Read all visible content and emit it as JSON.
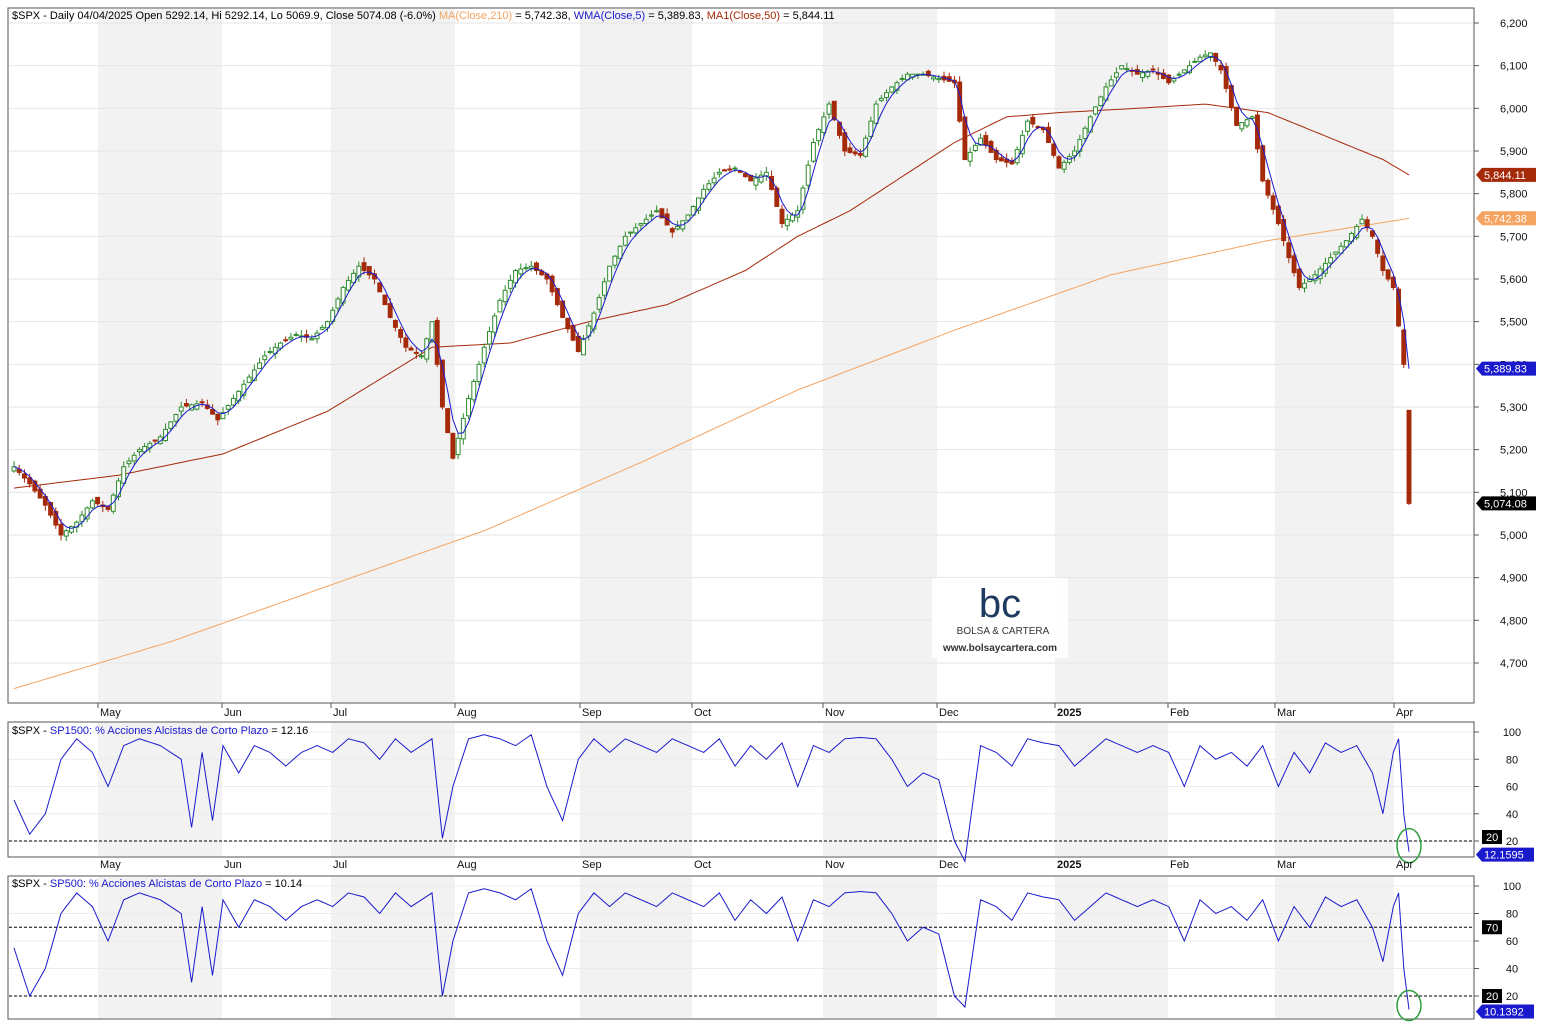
{
  "header": {
    "main_prefix": "$SPX - Daily 04/04/2025 Open 5292.14, Hi 5292.14, Lo 5069.9, Close 5074.08 (-6.0%)",
    "ma210_text": "MA(Close,210)",
    "ma210_value_text": "= 5,742.38,",
    "wma5_text": "WMA(Close,5)",
    "wma5_value_text": "= 5,389.83,",
    "ma50_text": "MA1(Close,50)",
    "ma50_value_text": "= 5,844.11",
    "sp1500_prefix": "$SPX - ",
    "sp1500_text": "SP1500: % Acciones Alcistas de Corto Plazo",
    "sp1500_value_text": "= 12.16",
    "sp500_prefix": "$SPX - ",
    "sp500_text": "SP500: % Acciones Alcistas de Corto Plazo",
    "sp500_value_text": "= 10.14"
  },
  "colors": {
    "up": "#2e8b2e",
    "down": "#a52a0a",
    "ma210": "#f4a460",
    "wma5": "#1a1acd",
    "ma50": "#a52a0a",
    "indicator": "#1a1acd",
    "circle": "#2e9e3e",
    "band": "#f2f2f2"
  },
  "logo": {
    "mark": "bc",
    "name": "BOLSA & CARTERA",
    "url": "www.bolsaycartera.com"
  },
  "x_axis": {
    "month_labels": [
      "May",
      "Jun",
      "Jul",
      "Aug",
      "Sep",
      "Oct",
      "Nov",
      "Dec",
      "2025",
      "Feb",
      "Mar",
      "Apr"
    ]
  },
  "price_axis": {
    "ticks": [
      "6,200",
      "6,100",
      "6,000",
      "5,900",
      "5,800",
      "5,700",
      "5,600",
      "5,500",
      "5,400",
      "5,300",
      "5,200",
      "5,100",
      "5,000",
      "4,900",
      "4,800",
      "4,700"
    ]
  },
  "price_tags": {
    "ma50": "5,844.11",
    "ma210": "5,742.38",
    "wma5": "5,389.83",
    "close": "5,074.08"
  },
  "indicator_axis": {
    "ticks": [
      "100",
      "80",
      "60",
      "40",
      "20"
    ]
  },
  "panel2_tags": {
    "level": "20",
    "value": "12.1595"
  },
  "panel3_tags": {
    "upper": "70",
    "lower": "20",
    "value": "10.1392"
  },
  "chart_data": [
    {
      "type": "candlestick",
      "symbol": "$SPX",
      "period": "Daily",
      "last_bar": {
        "date": "04/04/2025",
        "open": 5292.14,
        "high": 5292.14,
        "low": 5069.9,
        "close": 5074.08,
        "change_pct": -6.0
      },
      "ylim": [
        4630,
        6220
      ],
      "anchors": [
        [
          0,
          5160
        ],
        [
          3,
          5120
        ],
        [
          6,
          5070
        ],
        [
          9,
          5000
        ],
        [
          12,
          5030
        ],
        [
          15,
          5080
        ],
        [
          18,
          5060
        ],
        [
          21,
          5160
        ],
        [
          24,
          5200
        ],
        [
          28,
          5230
        ],
        [
          32,
          5300
        ],
        [
          36,
          5310
        ],
        [
          39,
          5270
        ],
        [
          42,
          5320
        ],
        [
          45,
          5370
        ],
        [
          48,
          5420
        ],
        [
          51,
          5450
        ],
        [
          54,
          5470
        ],
        [
          57,
          5460
        ],
        [
          60,
          5500
        ],
        [
          63,
          5580
        ],
        [
          66,
          5630
        ],
        [
          69,
          5600
        ],
        [
          72,
          5510
        ],
        [
          75,
          5440
        ],
        [
          78,
          5420
        ],
        [
          80,
          5500
        ],
        [
          82,
          5300
        ],
        [
          84,
          5180
        ],
        [
          87,
          5320
        ],
        [
          90,
          5440
        ],
        [
          93,
          5550
        ],
        [
          96,
          5620
        ],
        [
          99,
          5630
        ],
        [
          102,
          5600
        ],
        [
          105,
          5510
        ],
        [
          108,
          5430
        ],
        [
          111,
          5520
        ],
        [
          114,
          5630
        ],
        [
          117,
          5700
        ],
        [
          120,
          5730
        ],
        [
          123,
          5760
        ],
        [
          126,
          5710
        ],
        [
          129,
          5750
        ],
        [
          132,
          5810
        ],
        [
          135,
          5850
        ],
        [
          138,
          5860
        ],
        [
          141,
          5830
        ],
        [
          144,
          5850
        ],
        [
          147,
          5730
        ],
        [
          150,
          5760
        ],
        [
          153,
          5920
        ],
        [
          156,
          6010
        ],
        [
          159,
          5900
        ],
        [
          162,
          5890
        ],
        [
          165,
          6010
        ],
        [
          168,
          6050
        ],
        [
          171,
          6080
        ],
        [
          174,
          6080
        ],
        [
          177,
          6070
        ],
        [
          180,
          6060
        ],
        [
          182,
          5880
        ],
        [
          185,
          5930
        ],
        [
          188,
          5880
        ],
        [
          191,
          5870
        ],
        [
          194,
          5970
        ],
        [
          197,
          5950
        ],
        [
          200,
          5860
        ],
        [
          203,
          5900
        ],
        [
          206,
          5980
        ],
        [
          209,
          6050
        ],
        [
          212,
          6100
        ],
        [
          215,
          6080
        ],
        [
          218,
          6090
        ],
        [
          221,
          6060
        ],
        [
          224,
          6090
        ],
        [
          227,
          6120
        ],
        [
          229,
          6130
        ],
        [
          231,
          6090
        ],
        [
          234,
          5960
        ],
        [
          237,
          5980
        ],
        [
          239,
          5830
        ],
        [
          242,
          5730
        ],
        [
          244,
          5650
        ],
        [
          246,
          5580
        ],
        [
          249,
          5610
        ],
        [
          252,
          5650
        ],
        [
          255,
          5690
        ],
        [
          258,
          5740
        ],
        [
          260,
          5700
        ],
        [
          262,
          5620
        ],
        [
          264,
          5580
        ],
        [
          266,
          5400
        ],
        [
          267,
          5074
        ]
      ],
      "ma210_points": [
        [
          0,
          4640
        ],
        [
          30,
          4750
        ],
        [
          60,
          4880
        ],
        [
          90,
          5010
        ],
        [
          120,
          5170
        ],
        [
          150,
          5340
        ],
        [
          180,
          5480
        ],
        [
          210,
          5610
        ],
        [
          240,
          5690
        ],
        [
          267,
          5742
        ]
      ],
      "ma50_points": [
        [
          0,
          5110
        ],
        [
          20,
          5140
        ],
        [
          40,
          5190
        ],
        [
          60,
          5290
        ],
        [
          80,
          5440
        ],
        [
          95,
          5450
        ],
        [
          110,
          5500
        ],
        [
          125,
          5540
        ],
        [
          140,
          5620
        ],
        [
          150,
          5700
        ],
        [
          160,
          5760
        ],
        [
          170,
          5840
        ],
        [
          180,
          5920
        ],
        [
          190,
          5980
        ],
        [
          200,
          5990
        ],
        [
          215,
          6000
        ],
        [
          228,
          6010
        ],
        [
          240,
          5990
        ],
        [
          252,
          5930
        ],
        [
          262,
          5880
        ],
        [
          267,
          5844
        ]
      ]
    },
    {
      "type": "line",
      "name": "SP1500: % Acciones Alcistas de Corto Plazo",
      "last_value": 12.16,
      "ylim": [
        0,
        105
      ],
      "reference_lines": [
        20
      ],
      "anchors": [
        [
          0,
          50
        ],
        [
          3,
          25
        ],
        [
          6,
          40
        ],
        [
          9,
          80
        ],
        [
          12,
          95
        ],
        [
          15,
          85
        ],
        [
          18,
          60
        ],
        [
          21,
          90
        ],
        [
          24,
          95
        ],
        [
          28,
          90
        ],
        [
          32,
          80
        ],
        [
          34,
          30
        ],
        [
          36,
          85
        ],
        [
          38,
          35
        ],
        [
          40,
          90
        ],
        [
          43,
          70
        ],
        [
          46,
          90
        ],
        [
          49,
          85
        ],
        [
          52,
          75
        ],
        [
          55,
          85
        ],
        [
          58,
          90
        ],
        [
          61,
          85
        ],
        [
          64,
          95
        ],
        [
          67,
          92
        ],
        [
          70,
          80
        ],
        [
          73,
          95
        ],
        [
          76,
          85
        ],
        [
          80,
          95
        ],
        [
          82,
          22
        ],
        [
          84,
          60
        ],
        [
          87,
          95
        ],
        [
          90,
          98
        ],
        [
          93,
          95
        ],
        [
          96,
          90
        ],
        [
          99,
          98
        ],
        [
          102,
          60
        ],
        [
          105,
          35
        ],
        [
          108,
          80
        ],
        [
          111,
          95
        ],
        [
          114,
          85
        ],
        [
          117,
          95
        ],
        [
          120,
          90
        ],
        [
          123,
          85
        ],
        [
          126,
          95
        ],
        [
          129,
          90
        ],
        [
          132,
          85
        ],
        [
          135,
          95
        ],
        [
          138,
          75
        ],
        [
          141,
          90
        ],
        [
          144,
          80
        ],
        [
          147,
          92
        ],
        [
          150,
          60
        ],
        [
          153,
          90
        ],
        [
          156,
          85
        ],
        [
          159,
          95
        ],
        [
          162,
          96
        ],
        [
          165,
          95
        ],
        [
          168,
          80
        ],
        [
          171,
          60
        ],
        [
          174,
          70
        ],
        [
          177,
          65
        ],
        [
          180,
          20
        ],
        [
          182,
          5
        ],
        [
          185,
          90
        ],
        [
          188,
          85
        ],
        [
          191,
          75
        ],
        [
          194,
          95
        ],
        [
          197,
          92
        ],
        [
          200,
          90
        ],
        [
          203,
          75
        ],
        [
          206,
          85
        ],
        [
          209,
          95
        ],
        [
          212,
          90
        ],
        [
          215,
          85
        ],
        [
          218,
          90
        ],
        [
          221,
          85
        ],
        [
          224,
          60
        ],
        [
          227,
          90
        ],
        [
          230,
          80
        ],
        [
          233,
          85
        ],
        [
          236,
          75
        ],
        [
          239,
          90
        ],
        [
          242,
          60
        ],
        [
          245,
          85
        ],
        [
          248,
          70
        ],
        [
          251,
          92
        ],
        [
          254,
          85
        ],
        [
          257,
          90
        ],
        [
          260,
          70
        ],
        [
          262,
          40
        ],
        [
          264,
          85
        ],
        [
          265,
          95
        ],
        [
          266,
          40
        ],
        [
          267,
          12.16
        ]
      ]
    },
    {
      "type": "line",
      "name": "SP500: % Acciones Alcistas de Corto Plazo",
      "last_value": 10.14,
      "ylim": [
        0,
        105
      ],
      "reference_lines": [
        70,
        20
      ],
      "anchors": [
        [
          0,
          55
        ],
        [
          3,
          20
        ],
        [
          6,
          40
        ],
        [
          9,
          80
        ],
        [
          12,
          95
        ],
        [
          15,
          85
        ],
        [
          18,
          60
        ],
        [
          21,
          90
        ],
        [
          24,
          95
        ],
        [
          28,
          90
        ],
        [
          32,
          80
        ],
        [
          34,
          30
        ],
        [
          36,
          85
        ],
        [
          38,
          35
        ],
        [
          40,
          90
        ],
        [
          43,
          70
        ],
        [
          46,
          90
        ],
        [
          49,
          85
        ],
        [
          52,
          75
        ],
        [
          55,
          85
        ],
        [
          58,
          90
        ],
        [
          61,
          85
        ],
        [
          64,
          95
        ],
        [
          67,
          92
        ],
        [
          70,
          80
        ],
        [
          73,
          95
        ],
        [
          76,
          85
        ],
        [
          80,
          95
        ],
        [
          82,
          20
        ],
        [
          84,
          60
        ],
        [
          87,
          95
        ],
        [
          90,
          98
        ],
        [
          93,
          95
        ],
        [
          96,
          90
        ],
        [
          99,
          98
        ],
        [
          102,
          60
        ],
        [
          105,
          35
        ],
        [
          108,
          80
        ],
        [
          111,
          95
        ],
        [
          114,
          85
        ],
        [
          117,
          95
        ],
        [
          120,
          90
        ],
        [
          123,
          85
        ],
        [
          126,
          95
        ],
        [
          129,
          90
        ],
        [
          132,
          85
        ],
        [
          135,
          95
        ],
        [
          138,
          75
        ],
        [
          141,
          90
        ],
        [
          144,
          80
        ],
        [
          147,
          92
        ],
        [
          150,
          60
        ],
        [
          153,
          90
        ],
        [
          156,
          85
        ],
        [
          159,
          95
        ],
        [
          162,
          96
        ],
        [
          165,
          95
        ],
        [
          168,
          80
        ],
        [
          171,
          60
        ],
        [
          174,
          70
        ],
        [
          177,
          65
        ],
        [
          180,
          20
        ],
        [
          182,
          12
        ],
        [
          185,
          90
        ],
        [
          188,
          85
        ],
        [
          191,
          75
        ],
        [
          194,
          95
        ],
        [
          197,
          92
        ],
        [
          200,
          90
        ],
        [
          203,
          75
        ],
        [
          206,
          85
        ],
        [
          209,
          95
        ],
        [
          212,
          90
        ],
        [
          215,
          85
        ],
        [
          218,
          90
        ],
        [
          221,
          85
        ],
        [
          224,
          60
        ],
        [
          227,
          90
        ],
        [
          230,
          80
        ],
        [
          233,
          85
        ],
        [
          236,
          75
        ],
        [
          239,
          90
        ],
        [
          242,
          60
        ],
        [
          245,
          85
        ],
        [
          248,
          70
        ],
        [
          251,
          92
        ],
        [
          254,
          85
        ],
        [
          257,
          90
        ],
        [
          260,
          70
        ],
        [
          262,
          45
        ],
        [
          264,
          85
        ],
        [
          265,
          95
        ],
        [
          266,
          40
        ],
        [
          267,
          10.14
        ]
      ]
    }
  ]
}
